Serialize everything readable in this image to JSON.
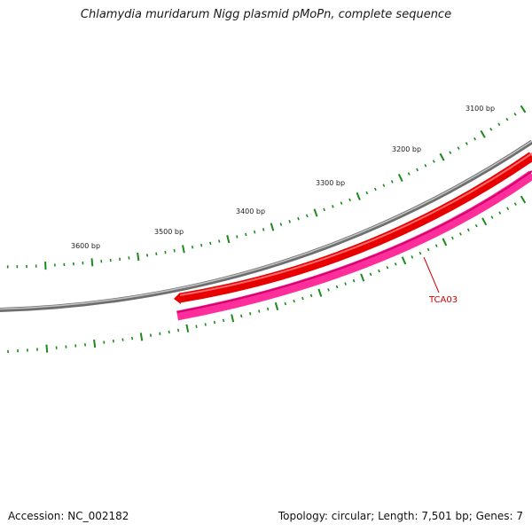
{
  "title": "Chlamydia muridarum Nigg plasmid pMoPn, complete sequence",
  "footer": {
    "accession": "Accession: NC_002182",
    "summary": "Topology: circular; Length: 7,501 bp; Genes: 7"
  },
  "scale": {
    "labels": [
      "3100 bp",
      "3200 bp",
      "3300 bp",
      "3400 bp",
      "3500 bp",
      "3600 bp"
    ]
  },
  "features": {
    "gene_label": "TCA03"
  },
  "colors": {
    "backbone": "#8c8c8c",
    "gene_forward": "#e80000",
    "gene_cds": "#ff2e9a",
    "ticks": "#1a8a1a",
    "label": "#d40000"
  }
}
